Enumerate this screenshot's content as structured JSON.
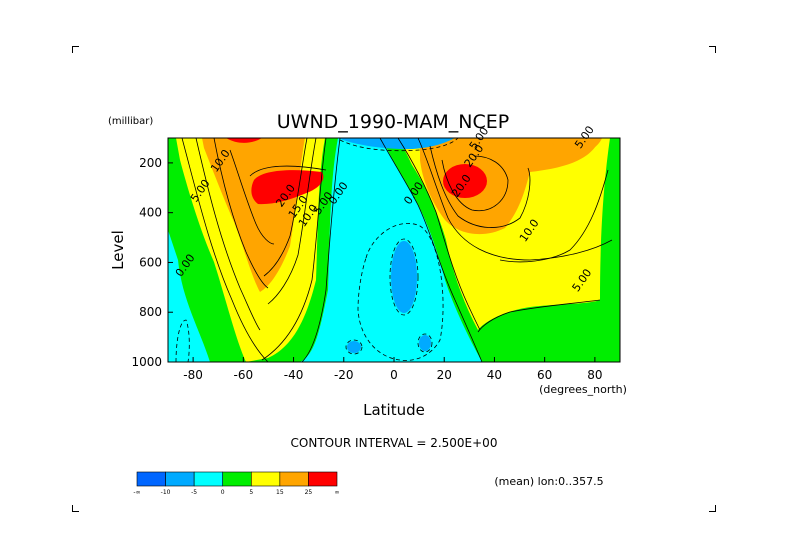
{
  "chart_data": {
    "type": "heatmap",
    "title": "UWND_1990-MAM_NCEP",
    "xlabel": "Latitude",
    "ylabel": "Level",
    "x_units": "(degrees_north)",
    "y_units": "(millibar)",
    "xlim": [
      -90,
      90
    ],
    "ylim": [
      1000,
      100
    ],
    "x_ticks": [
      -80,
      -60,
      -40,
      -20,
      0,
      20,
      40,
      60,
      80
    ],
    "y_ticks": [
      200,
      400,
      600,
      800,
      1000
    ],
    "contour_interval_text": "CONTOUR INTERVAL = 2.500E+00",
    "footer_note": "(mean) lon:0..357.5",
    "contour_labels": [
      {
        "text": "10.0",
        "lat": -68,
        "level": 200
      },
      {
        "text": "5.00",
        "lat": -76,
        "level": 320
      },
      {
        "text": "0.00",
        "lat": -82,
        "level": 620
      },
      {
        "text": "20.0",
        "lat": -42,
        "level": 340
      },
      {
        "text": "15.0",
        "lat": -37,
        "level": 385
      },
      {
        "text": "10.0",
        "lat": -33,
        "level": 420
      },
      {
        "text": "5.00",
        "lat": -27,
        "level": 370
      },
      {
        "text": "0.00",
        "lat": -21,
        "level": 330
      },
      {
        "text": "0.00",
        "lat": 9,
        "level": 330
      },
      {
        "text": "20.0",
        "lat": 33,
        "level": 180
      },
      {
        "text": "20.0",
        "lat": 28,
        "level": 300
      },
      {
        "text": "5.00",
        "lat": 35,
        "level": 110
      },
      {
        "text": "10.0",
        "lat": 55,
        "level": 480
      },
      {
        "text": "5.00",
        "lat": 76,
        "level": 680
      },
      {
        "text": "5.00",
        "lat": 77,
        "level": 105
      }
    ],
    "colorbar": {
      "colors": [
        "#0066ff",
        "#00aaff",
        "#00ffff",
        "#00ee00",
        "#ffff00",
        "#ffa500",
        "#ff0000"
      ],
      "labels": [
        "-∞",
        "-10",
        "-5",
        "0",
        "5",
        "15",
        "25",
        "∞"
      ]
    },
    "grid": false,
    "legend": "bottom-left"
  }
}
